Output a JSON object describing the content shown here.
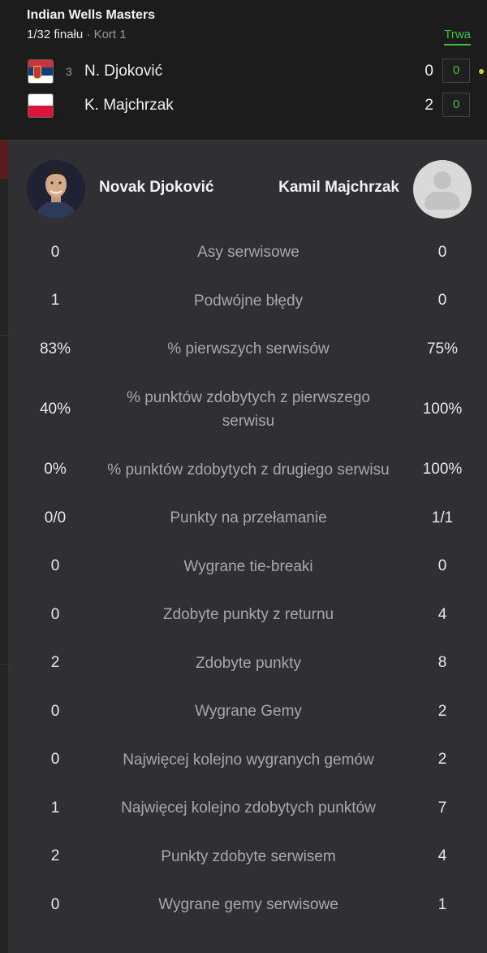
{
  "match": {
    "tournament": "Indian Wells Masters",
    "round": "1/32 finału",
    "separator": "·",
    "court": "Kort 1",
    "status": "Trwa"
  },
  "players": [
    {
      "seed": "3",
      "short_name": "N. Djoković",
      "full_name": "Novak Djoković",
      "flag": "serbia-flag",
      "sets": "0",
      "games": "0",
      "serving": true
    },
    {
      "seed": "",
      "short_name": "K. Majchrzak",
      "full_name": "Kamil Majchrzak",
      "flag": "poland-flag",
      "sets": "2",
      "games": "0",
      "serving": false
    }
  ],
  "stats": [
    {
      "label": "Asy serwisowe",
      "left": "0",
      "right": "0"
    },
    {
      "label": "Podwójne błędy",
      "left": "1",
      "right": "0"
    },
    {
      "label": "% pierwszych serwisów",
      "left": "83%",
      "right": "75%"
    },
    {
      "label": "% punktów zdobytych z pierwszego serwisu",
      "left": "40%",
      "right": "100%"
    },
    {
      "label": "% punktów zdobytych z drugiego serwisu",
      "left": "0%",
      "right": "100%"
    },
    {
      "label": "Punkty na przełamanie",
      "left": "0/0",
      "right": "1/1"
    },
    {
      "label": "Wygrane tie-breaki",
      "left": "0",
      "right": "0"
    },
    {
      "label": "Zdobyte punkty z returnu",
      "left": "0",
      "right": "4"
    },
    {
      "label": "Zdobyte punkty",
      "left": "2",
      "right": "8"
    },
    {
      "label": "Wygrane Gemy",
      "left": "0",
      "right": "2"
    },
    {
      "label": "Najwięcej kolejno wygranych gemów",
      "left": "0",
      "right": "2"
    },
    {
      "label": "Najwięcej kolejno zdobytych punktów",
      "left": "1",
      "right": "7"
    },
    {
      "label": "Punkty zdobyte serwisem",
      "left": "2",
      "right": "4"
    },
    {
      "label": "Wygrane gemy serwisowe",
      "left": "0",
      "right": "1"
    }
  ],
  "colors": {
    "live_green": "#3fbf3f",
    "serve_indicator": "#c8d41a",
    "panel_bg": "#303033"
  }
}
